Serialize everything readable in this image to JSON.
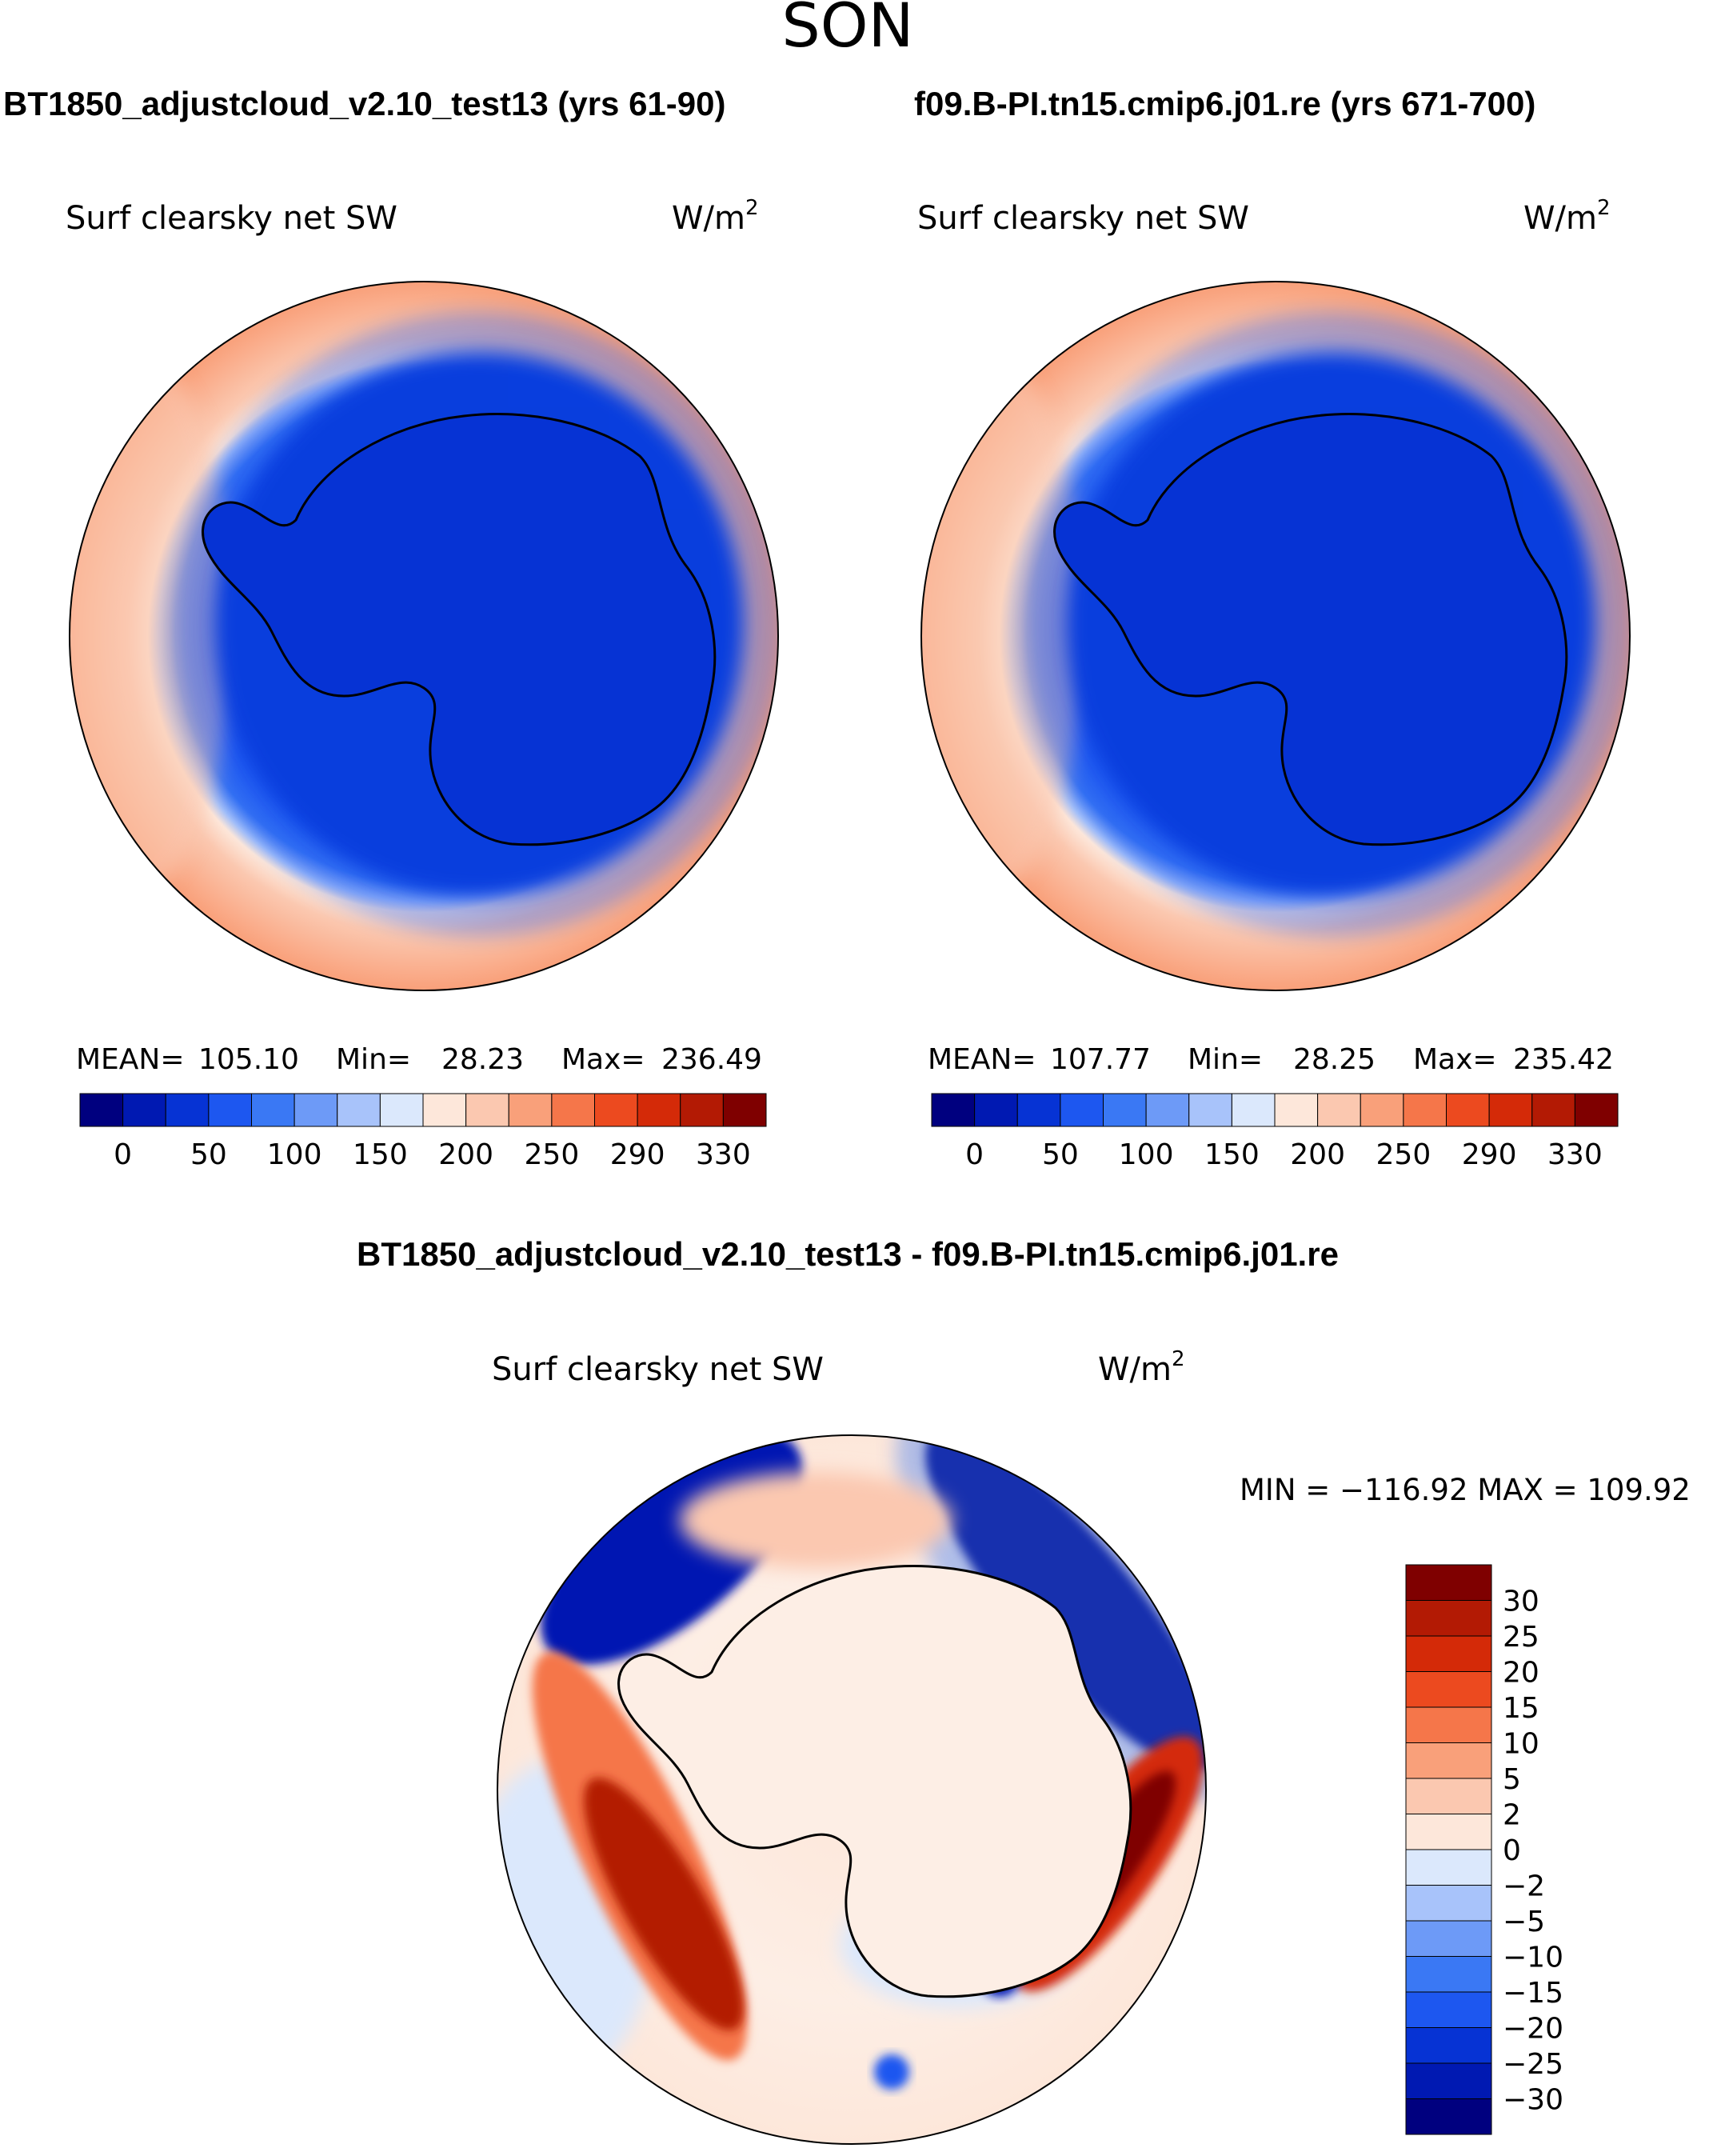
{
  "chart_data": [
    {
      "type": "contour-map",
      "figure_title": "SON",
      "case_title": "BT1850_adjustcloud_v2.10_test13 (yrs 61-90)",
      "variable": "Surf clearsky net SW",
      "units": "W/m",
      "units_exp": "2",
      "stats": {
        "mean_label": "MEAN=",
        "mean": "105.10",
        "min_label": "Min=",
        "min": "28.23",
        "max_label": "Max=",
        "max": "236.49"
      },
      "colorbar": {
        "colors": [
          "#00007f",
          "#0019b2",
          "#0633d4",
          "#1d57f0",
          "#3a78f4",
          "#6d9af7",
          "#a8c3fa",
          "#dbe8fc",
          "#fde7da",
          "#fbc8b0",
          "#f9a07a",
          "#f5764a",
          "#ec4a1f",
          "#d42a08",
          "#b31a04",
          "#7f0000"
        ],
        "tick_labels": [
          "0",
          "50",
          "100",
          "150",
          "200",
          "250",
          "290",
          "330"
        ]
      }
    },
    {
      "type": "contour-map",
      "case_title": "f09.B-PI.tn15.cmip6.j01.re (yrs 671-700)",
      "variable": "Surf clearsky net SW",
      "units": "W/m",
      "units_exp": "2",
      "stats": {
        "mean_label": "MEAN=",
        "mean": "107.77",
        "min_label": "Min=",
        "min": "28.25",
        "max_label": "Max=",
        "max": "235.42"
      },
      "colorbar": {
        "colors": [
          "#00007f",
          "#0019b2",
          "#0633d4",
          "#1d57f0",
          "#3a78f4",
          "#6d9af7",
          "#a8c3fa",
          "#dbe8fc",
          "#fde7da",
          "#fbc8b0",
          "#f9a07a",
          "#f5764a",
          "#ec4a1f",
          "#d42a08",
          "#b31a04",
          "#7f0000"
        ],
        "tick_labels": [
          "0",
          "50",
          "100",
          "150",
          "200",
          "250",
          "290",
          "330"
        ]
      }
    },
    {
      "type": "contour-map",
      "case_title": "BT1850_adjustcloud_v2.10_test13 - f09.B-PI.tn15.cmip6.j01.re",
      "variable": "Surf clearsky net SW",
      "units": "W/m",
      "units_exp": "2",
      "stats": {
        "text": "MIN = −116.92 MAX = 109.92"
      },
      "colorbar": {
        "colors": [
          "#7f0000",
          "#b31a04",
          "#d42a08",
          "#ec4a1f",
          "#f5764a",
          "#f9a07a",
          "#fbc8b0",
          "#fde7da",
          "#dbe8fc",
          "#a8c3fa",
          "#6d9af7",
          "#3a78f4",
          "#1d57f0",
          "#0633d4",
          "#0019b2",
          "#00007f"
        ],
        "tick_labels": [
          "30",
          "25",
          "20",
          "15",
          "10",
          "5",
          "2",
          "0",
          "−2",
          "−5",
          "−10",
          "−15",
          "−20",
          "−25",
          "−30"
        ]
      }
    }
  ]
}
